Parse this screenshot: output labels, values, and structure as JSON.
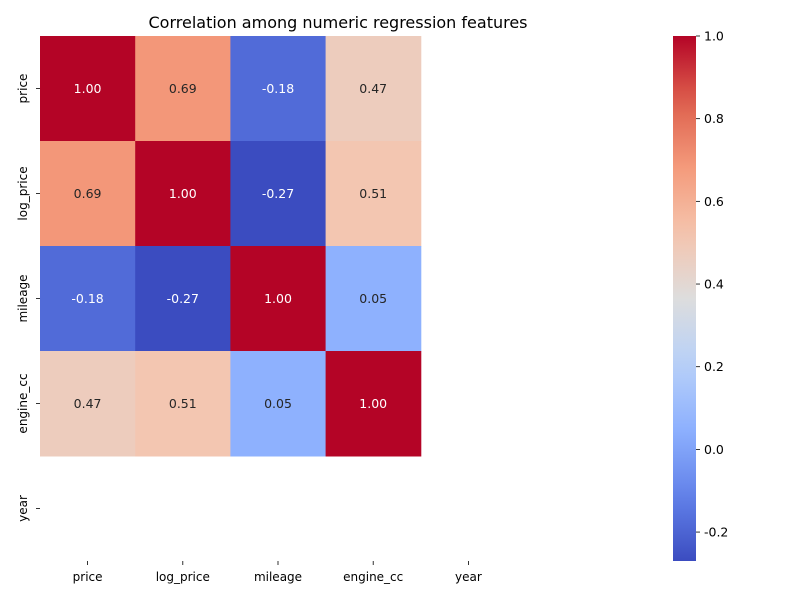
{
  "chart_data": {
    "type": "heatmap",
    "title": "Correlation among numeric regression features",
    "x_categories": [
      "price",
      "log_price",
      "mileage",
      "engine_cc",
      "year"
    ],
    "y_categories": [
      "price",
      "log_price",
      "mileage",
      "engine_cc",
      "year"
    ],
    "values": [
      [
        1.0,
        0.69,
        -0.18,
        0.47,
        null
      ],
      [
        0.69,
        1.0,
        -0.27,
        0.51,
        null
      ],
      [
        -0.18,
        -0.27,
        1.0,
        0.05,
        null
      ],
      [
        0.47,
        0.51,
        0.05,
        1.0,
        null
      ],
      [
        null,
        null,
        null,
        null,
        null
      ]
    ],
    "value_format": "0.00",
    "colormap": "coolwarm",
    "color_range": [
      -0.27,
      1.0
    ],
    "colorbar_ticks": [
      "-0.2",
      "0.0",
      "0.2",
      "0.4",
      "0.6",
      "0.8",
      "1.0"
    ],
    "colorbar_tick_values": [
      -0.2,
      0.0,
      0.2,
      0.4,
      0.6,
      0.8,
      1.0
    ]
  }
}
